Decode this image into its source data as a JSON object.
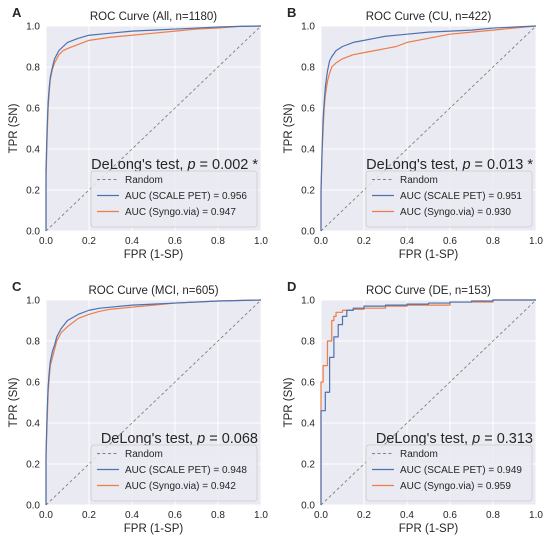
{
  "figure": {
    "background": "#ffffff",
    "plot_background": "#eaeaf2",
    "grid_color": "#ffffff",
    "colors": {
      "scale_pet": "#4c72b0",
      "syngo": "#ed7d4a",
      "random": "#808080"
    }
  },
  "chart_data": [
    {
      "panel": "A",
      "type": "line",
      "title": "ROC Curve (All, n=1180)",
      "xlabel": "FPR (1-SP)",
      "ylabel": "TPR (SN)",
      "xlim": [
        0.0,
        1.0
      ],
      "ylim": [
        0.0,
        1.0
      ],
      "xticks": [
        "0.0",
        "0.2",
        "0.4",
        "0.6",
        "0.8",
        "1.0"
      ],
      "yticks": [
        "0.0",
        "0.2",
        "0.4",
        "0.6",
        "0.8",
        "1.0"
      ],
      "grid": true,
      "legend_position": "lower-right",
      "annotation": {
        "prefix": "DeLong's test, ",
        "p": "p",
        "value": " = 0.002",
        "marker": " *"
      },
      "legend": [
        "Random",
        "AUC (SCALE PET) = 0.956",
        "AUC (Syngo.via) = 0.947"
      ],
      "series": [
        {
          "name": "Random",
          "style": "dashed",
          "x": [
            0,
            1
          ],
          "y": [
            0,
            1
          ]
        },
        {
          "name": "AUC (SCALE PET) = 0.956",
          "x": [
            0,
            0,
            0.005,
            0.01,
            0.015,
            0.02,
            0.03,
            0.04,
            0.05,
            0.06,
            0.08,
            0.1,
            0.15,
            0.2,
            0.3,
            0.4,
            0.5,
            0.6,
            0.7,
            0.8,
            0.9,
            1.0
          ],
          "y": [
            0,
            0.3,
            0.5,
            0.63,
            0.7,
            0.75,
            0.8,
            0.84,
            0.86,
            0.88,
            0.9,
            0.92,
            0.94,
            0.955,
            0.965,
            0.975,
            0.98,
            0.985,
            0.99,
            0.995,
            0.998,
            1.0
          ]
        },
        {
          "name": "AUC (Syngo.via) = 0.947",
          "x": [
            0,
            0,
            0.005,
            0.01,
            0.015,
            0.02,
            0.03,
            0.04,
            0.05,
            0.06,
            0.08,
            0.1,
            0.15,
            0.2,
            0.3,
            0.4,
            0.5,
            0.6,
            0.7,
            0.8,
            0.9,
            1.0
          ],
          "y": [
            0,
            0.25,
            0.45,
            0.6,
            0.68,
            0.74,
            0.79,
            0.82,
            0.84,
            0.86,
            0.88,
            0.89,
            0.91,
            0.93,
            0.945,
            0.955,
            0.965,
            0.975,
            0.985,
            0.99,
            0.998,
            1.0
          ]
        }
      ]
    },
    {
      "panel": "B",
      "type": "line",
      "title": "ROC Curve (CU, n=422)",
      "xlabel": "FPR (1-SP)",
      "ylabel": "TPR (SN)",
      "xlim": [
        0.0,
        1.0
      ],
      "ylim": [
        0.0,
        1.0
      ],
      "xticks": [
        "0.0",
        "0.2",
        "0.4",
        "0.6",
        "0.8",
        "1.0"
      ],
      "yticks": [
        "0.0",
        "0.2",
        "0.4",
        "0.6",
        "0.8",
        "1.0"
      ],
      "grid": true,
      "legend_position": "lower-right",
      "annotation": {
        "prefix": "DeLong's test, ",
        "p": "p",
        "value": " = 0.013",
        "marker": " *"
      },
      "legend": [
        "Random",
        "AUC (SCALE PET) = 0.951",
        "AUC (Syngo.via) = 0.930"
      ],
      "series": [
        {
          "name": "Random",
          "style": "dashed",
          "x": [
            0,
            1
          ],
          "y": [
            0,
            1
          ]
        },
        {
          "name": "AUC (SCALE PET) = 0.951",
          "x": [
            0,
            0,
            0.005,
            0.01,
            0.015,
            0.02,
            0.03,
            0.04,
            0.05,
            0.07,
            0.1,
            0.15,
            0.2,
            0.25,
            0.3,
            0.4,
            0.5,
            0.6,
            0.7,
            0.8,
            0.9,
            1.0
          ],
          "y": [
            0,
            0.2,
            0.4,
            0.55,
            0.63,
            0.7,
            0.78,
            0.83,
            0.85,
            0.88,
            0.9,
            0.92,
            0.93,
            0.94,
            0.95,
            0.96,
            0.97,
            0.975,
            0.98,
            0.99,
            0.995,
            1.0
          ]
        },
        {
          "name": "AUC (Syngo.via) = 0.930",
          "x": [
            0,
            0,
            0.005,
            0.01,
            0.015,
            0.02,
            0.03,
            0.04,
            0.05,
            0.07,
            0.1,
            0.15,
            0.2,
            0.25,
            0.3,
            0.35,
            0.4,
            0.5,
            0.6,
            0.7,
            0.8,
            0.9,
            1.0
          ],
          "y": [
            0,
            0.18,
            0.38,
            0.5,
            0.6,
            0.66,
            0.73,
            0.77,
            0.8,
            0.82,
            0.84,
            0.86,
            0.87,
            0.88,
            0.89,
            0.9,
            0.92,
            0.94,
            0.96,
            0.97,
            0.98,
            0.99,
            1.0
          ]
        }
      ]
    },
    {
      "panel": "C",
      "type": "line",
      "title": "ROC Curve (MCI, n=605)",
      "xlabel": "FPR (1-SP)",
      "ylabel": "TPR (SN)",
      "xlim": [
        0.0,
        1.0
      ],
      "ylim": [
        0.0,
        1.0
      ],
      "xticks": [
        "0.0",
        "0.2",
        "0.4",
        "0.6",
        "0.8",
        "1.0"
      ],
      "yticks": [
        "0.0",
        "0.2",
        "0.4",
        "0.6",
        "0.8",
        "1.0"
      ],
      "grid": true,
      "legend_position": "lower-right",
      "annotation": {
        "prefix": "DeLong's test, ",
        "p": "p",
        "value": " = 0.068",
        "marker": ""
      },
      "legend": [
        "Random",
        "AUC (SCALE PET) = 0.948",
        "AUC (Syngo.via) = 0.942"
      ],
      "series": [
        {
          "name": "Random",
          "style": "dashed",
          "x": [
            0,
            1
          ],
          "y": [
            0,
            1
          ]
        },
        {
          "name": "AUC (SCALE PET) = 0.948",
          "x": [
            0,
            0,
            0.005,
            0.01,
            0.015,
            0.02,
            0.03,
            0.04,
            0.05,
            0.07,
            0.1,
            0.15,
            0.2,
            0.25,
            0.3,
            0.4,
            0.5,
            0.6,
            0.8,
            1.0
          ],
          "y": [
            0,
            0.25,
            0.45,
            0.58,
            0.65,
            0.7,
            0.75,
            0.78,
            0.82,
            0.86,
            0.9,
            0.93,
            0.95,
            0.96,
            0.965,
            0.975,
            0.98,
            0.985,
            0.995,
            1.0
          ]
        },
        {
          "name": "AUC (Syngo.via) = 0.942",
          "x": [
            0,
            0,
            0.005,
            0.01,
            0.015,
            0.02,
            0.03,
            0.04,
            0.05,
            0.07,
            0.1,
            0.15,
            0.2,
            0.25,
            0.3,
            0.4,
            0.5,
            0.6,
            0.8,
            1.0
          ],
          "y": [
            0,
            0.22,
            0.4,
            0.55,
            0.62,
            0.68,
            0.72,
            0.76,
            0.8,
            0.84,
            0.87,
            0.91,
            0.93,
            0.945,
            0.955,
            0.965,
            0.975,
            0.985,
            0.995,
            1.0
          ]
        }
      ]
    },
    {
      "panel": "D",
      "type": "line",
      "title": "ROC Curve (DE, n=153)",
      "xlabel": "FPR (1-SP)",
      "ylabel": "TPR (SN)",
      "xlim": [
        0.0,
        1.0
      ],
      "ylim": [
        0.0,
        1.0
      ],
      "xticks": [
        "0.0",
        "0.2",
        "0.4",
        "0.6",
        "0.8",
        "1.0"
      ],
      "yticks": [
        "0.0",
        "0.2",
        "0.4",
        "0.6",
        "0.8",
        "1.0"
      ],
      "grid": true,
      "legend_position": "lower-right",
      "annotation": {
        "prefix": "DeLong's test, ",
        "p": "p",
        "value": " = 0.313",
        "marker": ""
      },
      "legend": [
        "Random",
        "AUC (SCALE PET) = 0.949",
        "AUC (Syngo.via) = 0.959"
      ],
      "series": [
        {
          "name": "Random",
          "style": "dashed",
          "x": [
            0,
            1
          ],
          "y": [
            0,
            1
          ]
        },
        {
          "name": "AUC (SCALE PET) = 0.949",
          "x": [
            0,
            0,
            0.02,
            0.02,
            0.04,
            0.04,
            0.06,
            0.06,
            0.08,
            0.08,
            0.1,
            0.1,
            0.12,
            0.12,
            0.15,
            0.15,
            0.2,
            0.2,
            0.3,
            0.3,
            0.4,
            0.4,
            0.5,
            0.5,
            0.6,
            0.6,
            0.7,
            0.7,
            0.8,
            0.8,
            1.0
          ],
          "y": [
            0,
            0.46,
            0.46,
            0.55,
            0.55,
            0.72,
            0.72,
            0.82,
            0.82,
            0.88,
            0.88,
            0.92,
            0.92,
            0.95,
            0.95,
            0.96,
            0.96,
            0.97,
            0.97,
            0.975,
            0.975,
            0.98,
            0.98,
            0.985,
            0.985,
            0.99,
            0.99,
            0.995,
            0.995,
            1.0,
            1.0
          ]
        },
        {
          "name": "AUC (Syngo.via) = 0.959",
          "x": [
            0,
            0,
            0.01,
            0.01,
            0.03,
            0.03,
            0.05,
            0.05,
            0.06,
            0.06,
            0.07,
            0.07,
            0.1,
            0.1,
            0.15,
            0.15,
            0.2,
            0.2,
            0.3,
            0.3,
            0.4,
            0.4,
            0.6,
            0.6,
            0.8,
            0.8,
            1.0
          ],
          "y": [
            0,
            0.6,
            0.6,
            0.68,
            0.68,
            0.8,
            0.8,
            0.9,
            0.9,
            0.92,
            0.92,
            0.94,
            0.94,
            0.95,
            0.95,
            0.955,
            0.955,
            0.96,
            0.96,
            0.97,
            0.97,
            0.975,
            0.975,
            0.99,
            0.99,
            1.0,
            1.0
          ]
        }
      ]
    }
  ]
}
